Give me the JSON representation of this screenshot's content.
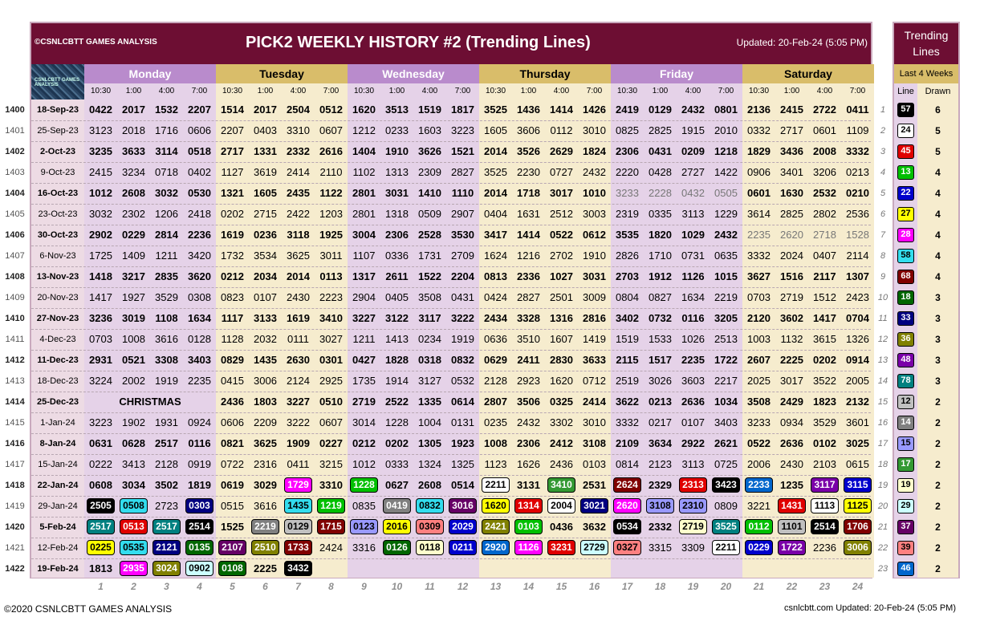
{
  "header": {
    "left": "©CSNLCBTT GAMES ANALYSIS",
    "title": "PICK2 WEEKLY HISTORY #2 (Trending Lines)",
    "updated": "Updated: 20-Feb-24 (5:05 PM)"
  },
  "logo_text": "CSNLCBTT GAMES ANALYSIS",
  "days": [
    "Monday",
    "Tuesday",
    "Wednesday",
    "Thursday",
    "Friday",
    "Saturday"
  ],
  "times": [
    "10:30",
    "1:00",
    "4:00",
    "7:00"
  ],
  "rows": [
    {
      "id": "1400",
      "date": "18-Sep-23",
      "bold": true,
      "draws": [
        "0422",
        "2017",
        "1532",
        "2207",
        "1514",
        "2017",
        "2504",
        "0512",
        "1620",
        "3513",
        "1519",
        "1817",
        "3525",
        "1436",
        "1414",
        "1426",
        "2419",
        "0129",
        "2432",
        "0801",
        "2136",
        "2415",
        "2722",
        "0411"
      ]
    },
    {
      "id": "1401",
      "date": "25-Sep-23",
      "bold": false,
      "draws": [
        "3123",
        "2018",
        "1716",
        "0606",
        "2207",
        "0403",
        "3310",
        "0607",
        "1212",
        "0233",
        "1603",
        "3223",
        "1605",
        "3606",
        "0112",
        "3010",
        "0825",
        "2825",
        "1915",
        "2010",
        "0332",
        "2717",
        "0601",
        "1109"
      ]
    },
    {
      "id": "1402",
      "date": "2-Oct-23",
      "bold": true,
      "draws": [
        "3235",
        "3633",
        "3114",
        "0518",
        "2717",
        "1331",
        "2332",
        "2616",
        "1404",
        "1910",
        "3626",
        "1521",
        "2014",
        "3526",
        "2629",
        "1824",
        "2306",
        "0431",
        "0209",
        "1218",
        "1829",
        "3436",
        "2008",
        "3332"
      ]
    },
    {
      "id": "1403",
      "date": "9-Oct-23",
      "bold": false,
      "draws": [
        "2415",
        "3234",
        "0718",
        "0402",
        "1127",
        "3619",
        "2414",
        "2110",
        "1102",
        "1313",
        "2309",
        "2827",
        "3525",
        "2230",
        "0727",
        "2432",
        "2220",
        "0428",
        "2727",
        "1422",
        "0906",
        "3401",
        "3206",
        "0213"
      ]
    },
    {
      "id": "1404",
      "date": "16-Oct-23",
      "bold": true,
      "draws": [
        "1012",
        "2608",
        "3032",
        "0530",
        "1321",
        "1605",
        "2435",
        "1122",
        "2801",
        "3031",
        "1410",
        "1110",
        "2014",
        "1718",
        "3017",
        "1010",
        "3233",
        "2228",
        "0432",
        "0505",
        "0601",
        "1630",
        "2532",
        "0210"
      ]
    },
    {
      "id": "1405",
      "date": "23-Oct-23",
      "bold": false,
      "draws": [
        "3032",
        "2302",
        "1206",
        "2418",
        "0202",
        "2715",
        "2422",
        "1203",
        "2801",
        "1318",
        "0509",
        "2907",
        "0404",
        "1631",
        "2512",
        "3003",
        "2319",
        "0335",
        "3113",
        "1229",
        "3614",
        "2825",
        "2802",
        "2536"
      ]
    },
    {
      "id": "1406",
      "date": "30-Oct-23",
      "bold": true,
      "draws": [
        "2902",
        "0229",
        "2814",
        "2236",
        "1619",
        "0236",
        "3118",
        "1925",
        "3004",
        "2306",
        "2528",
        "3530",
        "3417",
        "1414",
        "0522",
        "0612",
        "3535",
        "1820",
        "1029",
        "2432",
        "2235",
        "2620",
        "2718",
        "1528"
      ]
    },
    {
      "id": "1407",
      "date": "6-Nov-23",
      "bold": false,
      "draws": [
        "1725",
        "1409",
        "1211",
        "3420",
        "1732",
        "3534",
        "3625",
        "3011",
        "1107",
        "0336",
        "1731",
        "2709",
        "1624",
        "1216",
        "2702",
        "1910",
        "2826",
        "1710",
        "0731",
        "0635",
        "3332",
        "2024",
        "0407",
        "2114"
      ]
    },
    {
      "id": "1408",
      "date": "13-Nov-23",
      "bold": true,
      "draws": [
        "1418",
        "3217",
        "2835",
        "3620",
        "0212",
        "2034",
        "2014",
        "0113",
        "1317",
        "2611",
        "1522",
        "2204",
        "0813",
        "2336",
        "1027",
        "3031",
        "2703",
        "1912",
        "1126",
        "1015",
        "3627",
        "1516",
        "2117",
        "1307"
      ]
    },
    {
      "id": "1409",
      "date": "20-Nov-23",
      "bold": false,
      "draws": [
        "1417",
        "1927",
        "3529",
        "0308",
        "0823",
        "0107",
        "2430",
        "2223",
        "2904",
        "0405",
        "3508",
        "0431",
        "0424",
        "2827",
        "2501",
        "3009",
        "0804",
        "0827",
        "1634",
        "2219",
        "0703",
        "2719",
        "1512",
        "2423"
      ]
    },
    {
      "id": "1410",
      "date": "27-Nov-23",
      "bold": true,
      "draws": [
        "3236",
        "3019",
        "1108",
        "1634",
        "1117",
        "3133",
        "1619",
        "3410",
        "3227",
        "3122",
        "3117",
        "3222",
        "2434",
        "3328",
        "1316",
        "2816",
        "3402",
        "0732",
        "0116",
        "3205",
        "2120",
        "3602",
        "1417",
        "0704"
      ]
    },
    {
      "id": "1411",
      "date": "4-Dec-23",
      "bold": false,
      "draws": [
        "0703",
        "1008",
        "3616",
        "0128",
        "1128",
        "2032",
        "0111",
        "3027",
        "1211",
        "1413",
        "0234",
        "1919",
        "0636",
        "3510",
        "1607",
        "1419",
        "1519",
        "1533",
        "1026",
        "2513",
        "1003",
        "1132",
        "3615",
        "1326"
      ]
    },
    {
      "id": "1412",
      "date": "11-Dec-23",
      "bold": true,
      "draws": [
        "2931",
        "0521",
        "3308",
        "3403",
        "0829",
        "1435",
        "2630",
        "0301",
        "0427",
        "1828",
        "0318",
        "0832",
        "0629",
        "2411",
        "2830",
        "3633",
        "2115",
        "1517",
        "2235",
        "1722",
        "2607",
        "2225",
        "0202",
        "0914"
      ]
    },
    {
      "id": "1413",
      "date": "18-Dec-23",
      "bold": false,
      "draws": [
        "3224",
        "2002",
        "1919",
        "2235",
        "0415",
        "3006",
        "2124",
        "2925",
        "1735",
        "1914",
        "3127",
        "0532",
        "2128",
        "2923",
        "1620",
        "0712",
        "2519",
        "3026",
        "3603",
        "2217",
        "2025",
        "3017",
        "3522",
        "2005"
      ]
    },
    {
      "id": "1414",
      "date": "25-Dec-23",
      "bold": true,
      "note": "CHRISTMAS",
      "draws": [
        "",
        "",
        "",
        "",
        "2436",
        "1803",
        "3227",
        "0510",
        "2719",
        "2522",
        "1335",
        "0614",
        "2807",
        "3506",
        "0325",
        "2414",
        "3622",
        "0213",
        "2636",
        "1034",
        "3508",
        "2429",
        "1823",
        "2132"
      ]
    },
    {
      "id": "1415",
      "date": "1-Jan-24",
      "bold": false,
      "draws": [
        "3223",
        "1902",
        "1931",
        "0924",
        "0606",
        "2209",
        "3222",
        "0607",
        "3014",
        "1228",
        "1004",
        "0131",
        "0235",
        "2432",
        "3302",
        "3010",
        "3332",
        "0217",
        "0107",
        "3403",
        "3233",
        "0934",
        "3529",
        "3601"
      ]
    },
    {
      "id": "1416",
      "date": "8-Jan-24",
      "bold": true,
      "draws": [
        "0631",
        "0628",
        "2517",
        "0116",
        "0821",
        "3625",
        "1909",
        "0227",
        "0212",
        "0202",
        "1305",
        "1923",
        "1008",
        "2306",
        "2412",
        "3108",
        "2109",
        "3634",
        "2922",
        "2621",
        "0522",
        "2636",
        "0102",
        "3025"
      ]
    },
    {
      "id": "1417",
      "date": "15-Jan-24",
      "bold": false,
      "draws": [
        "0222",
        "3413",
        "2128",
        "0919",
        "0722",
        "2316",
        "0411",
        "3215",
        "1012",
        "0333",
        "1324",
        "1325",
        "1123",
        "1626",
        "2436",
        "0103",
        "0814",
        "2123",
        "3113",
        "0725",
        "2006",
        "2430",
        "2103",
        "0615"
      ]
    },
    {
      "id": "1418",
      "date": "22-Jan-24",
      "bold": true,
      "draws": [
        "0608",
        "3034",
        "3502",
        "1819",
        "0619",
        "3029",
        "1729",
        "3310",
        "1228",
        "0627",
        "2608",
        "0514",
        "2211",
        "3131",
        "3410",
        "2531",
        "2624",
        "2329",
        "2313",
        "3423",
        "2233",
        "1235",
        "3117",
        "3115"
      ]
    },
    {
      "id": "1419",
      "date": "29-Jan-24",
      "bold": false,
      "draws": [
        "2505",
        "0508",
        "2723",
        "0303",
        "0515",
        "3616",
        "1435",
        "1219",
        "0835",
        "0419",
        "0832",
        "3016",
        "1620",
        "1314",
        "2004",
        "3021",
        "2620",
        "3108",
        "2310",
        "0809",
        "3221",
        "1431",
        "1113",
        "1125"
      ]
    },
    {
      "id": "1420",
      "date": "5-Feb-24",
      "bold": true,
      "draws": [
        "2517",
        "0513",
        "2517",
        "2514",
        "1525",
        "2219",
        "0129",
        "1715",
        "0123",
        "2016",
        "0309",
        "2029",
        "2421",
        "0103",
        "0436",
        "3632",
        "0534",
        "2332",
        "2719",
        "3525",
        "0112",
        "1101",
        "2514",
        "1706"
      ]
    },
    {
      "id": "1421",
      "date": "12-Feb-24",
      "bold": false,
      "draws": [
        "0225",
        "0535",
        "2121",
        "0135",
        "2107",
        "2510",
        "1733",
        "2424",
        "3316",
        "0126",
        "0118",
        "0211",
        "2920",
        "1126",
        "3231",
        "2729",
        "0327",
        "3315",
        "3309",
        "2211",
        "0229",
        "1722",
        "2236",
        "3006"
      ]
    },
    {
      "id": "1422",
      "date": "19-Feb-24",
      "bold": true,
      "draws": [
        "1813",
        "2935",
        "3024",
        "0902",
        "0108",
        "2225",
        "3432",
        "",
        "",
        "",
        "",
        "",
        "",
        "",
        "",
        "",
        "",
        "",
        "",
        "",
        "",
        "",
        "",
        ""
      ]
    }
  ],
  "col_numbers": [
    "1",
    "2",
    "3",
    "4",
    "5",
    "6",
    "7",
    "8",
    "9",
    "10",
    "11",
    "12",
    "13",
    "14",
    "15",
    "16",
    "17",
    "18",
    "19",
    "20",
    "21",
    "22",
    "23",
    "24"
  ],
  "side": {
    "title": "Trending Lines",
    "subtitle": "Last 4 Weeks",
    "col_line": "Line",
    "col_drawn": "Drawn",
    "items": [
      {
        "idx": "1",
        "line": "57",
        "drawn": "6",
        "color": "#000000"
      },
      {
        "idx": "2",
        "line": "24",
        "drawn": "5",
        "color": "#ffffff"
      },
      {
        "idx": "3",
        "line": "45",
        "drawn": "5",
        "color": "#e00000"
      },
      {
        "idx": "4",
        "line": "13",
        "drawn": "4",
        "color": "#00c000"
      },
      {
        "idx": "5",
        "line": "22",
        "drawn": "4",
        "color": "#0000cc"
      },
      {
        "idx": "6",
        "line": "27",
        "drawn": "4",
        "color": "#ffff00"
      },
      {
        "idx": "7",
        "line": "28",
        "drawn": "4",
        "color": "#ff00ff"
      },
      {
        "idx": "8",
        "line": "58",
        "drawn": "4",
        "color": "#33ddee"
      },
      {
        "idx": "9",
        "line": "68",
        "drawn": "4",
        "color": "#800000"
      },
      {
        "idx": "10",
        "line": "18",
        "drawn": "3",
        "color": "#006600"
      },
      {
        "idx": "11",
        "line": "33",
        "drawn": "3",
        "color": "#000080"
      },
      {
        "idx": "12",
        "line": "36",
        "drawn": "3",
        "color": "#808000"
      },
      {
        "idx": "13",
        "line": "48",
        "drawn": "3",
        "color": "#7a00a8"
      },
      {
        "idx": "14",
        "line": "78",
        "drawn": "3",
        "color": "#008080"
      },
      {
        "idx": "15",
        "line": "12",
        "drawn": "2",
        "color": "#c0c0c0"
      },
      {
        "idx": "16",
        "line": "14",
        "drawn": "2",
        "color": "#808080"
      },
      {
        "idx": "17",
        "line": "15",
        "drawn": "2",
        "color": "#9999ff"
      },
      {
        "idx": "18",
        "line": "17",
        "drawn": "2",
        "color": "#339933"
      },
      {
        "idx": "19",
        "line": "19",
        "drawn": "2",
        "color": "#ffffcc"
      },
      {
        "idx": "20",
        "line": "29",
        "drawn": "2",
        "color": "#ccffff"
      },
      {
        "idx": "21",
        "line": "37",
        "drawn": "2",
        "color": "#660066"
      },
      {
        "idx": "22",
        "line": "39",
        "drawn": "2",
        "color": "#ff8080"
      },
      {
        "idx": "23",
        "line": "46",
        "drawn": "2",
        "color": "#0066cc"
      }
    ]
  },
  "highlights": {
    "1418": {
      "6": "#ff00ff",
      "8": "#00c000",
      "12": "#ffffff",
      "14": "#339933",
      "16": "#800000",
      "18": "#e00000",
      "19": "#000000",
      "20": "#0066cc",
      "22": "#7a00a8",
      "23": "#0000cc"
    },
    "1419": {
      "0": "#000000",
      "1": "#33ddee",
      "3": "#000080",
      "6": "#33ddee",
      "7": "#00c000",
      "9": "#808080",
      "10": "#33ddee",
      "11": "#660066",
      "12": "#ffff00",
      "13": "#e00000",
      "14": "#ffffff",
      "15": "#000080",
      "16": "#ff00ff",
      "17": "#9999ff",
      "18": "#9999ff",
      "21": "#e00000",
      "22": "#ffffff",
      "23": "#ffff00"
    },
    "1420": {
      "0": "#008080",
      "1": "#e00000",
      "2": "#008080",
      "3": "#000000",
      "5": "#808080",
      "6": "#c0c0c0",
      "7": "#800000",
      "8": "#9999ff",
      "9": "#ffff00",
      "10": "#ff8080",
      "11": "#0000cc",
      "12": "#808000",
      "13": "#00c000",
      "16": "#000000",
      "18": "#ffffcc",
      "19": "#008080",
      "20": "#00c000",
      "21": "#c0c0c0",
      "22": "#000000",
      "23": "#800000"
    },
    "1421": {
      "0": "#ffff00",
      "1": "#33ddee",
      "2": "#000080",
      "3": "#006600",
      "4": "#660066",
      "5": "#808000",
      "6": "#800000",
      "9": "#006600",
      "10": "#ffffcc",
      "11": "#0000cc",
      "12": "#0066cc",
      "13": "#ff00ff",
      "14": "#e00000",
      "15": "#ccffff",
      "16": "#ff8080",
      "19": "#ffffff",
      "20": "#0000cc",
      "21": "#7a00a8",
      "23": "#808000"
    },
    "1422": {
      "1": "#ff00ff",
      "2": "#808000",
      "3": "#ccffff",
      "4": "#006600",
      "6": "#000000"
    }
  },
  "faded": {
    "1404": [
      "16",
      "17",
      "18",
      "19"
    ],
    "1406": [
      "20",
      "21",
      "22",
      "23"
    ]
  },
  "footer": {
    "left": "©2020 CSNLCBTT GAMES ANALYSIS",
    "right": "csnlcbtt.com Updated: 20-Feb-24 (5:05 PM)"
  }
}
